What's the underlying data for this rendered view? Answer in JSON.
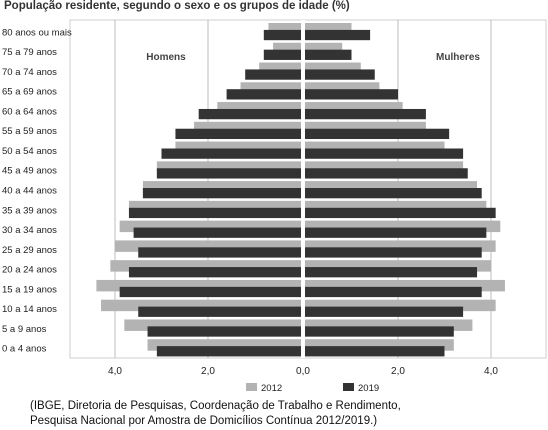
{
  "chart_data": {
    "type": "bar",
    "title": "População residente, segundo o sexo e os grupos de idade (%)",
    "categories": [
      "80 anos ou mais",
      "75 a 79 anos",
      "70 a 74 anos",
      "65 a 69 anos",
      "60 a 64 anos",
      "55 a 59 anos",
      "50 a 54 anos",
      "45 a 49 anos",
      "40 a 44 anos",
      "35 a 39 anos",
      "30 a 34 anos",
      "25 a 29 anos",
      "20 a 24 anos",
      "15 a 19 anos",
      "10 a 14 anos",
      "5 a 9 anos",
      "0 a 4 anos"
    ],
    "group_labels": {
      "left": "Homens",
      "right": "Mulheres"
    },
    "xticks": [
      "4,0",
      "2,0",
      "0,0",
      "2,0",
      "4,0"
    ],
    "xlim": [
      -4.5,
      4.5
    ],
    "grid": true,
    "legend_position": "bottom",
    "series": [
      {
        "name": "2012",
        "color": "#b3b3b3",
        "homens": [
          0.7,
          0.6,
          0.9,
          1.3,
          1.8,
          2.3,
          2.7,
          3.1,
          3.4,
          3.7,
          3.9,
          4.0,
          4.1,
          4.4,
          4.3,
          3.8,
          3.3
        ],
        "mulheres": [
          1.0,
          0.8,
          1.2,
          1.6,
          2.1,
          2.6,
          3.0,
          3.4,
          3.7,
          3.9,
          4.2,
          4.1,
          4.0,
          4.3,
          4.1,
          3.6,
          3.2
        ]
      },
      {
        "name": "2019",
        "color": "#333333",
        "homens": [
          0.8,
          0.8,
          1.2,
          1.6,
          2.2,
          2.7,
          3.0,
          3.1,
          3.4,
          3.7,
          3.6,
          3.5,
          3.7,
          3.9,
          3.5,
          3.3,
          3.1
        ],
        "mulheres": [
          1.4,
          1.0,
          1.5,
          2.0,
          2.6,
          3.1,
          3.4,
          3.5,
          3.8,
          4.1,
          3.9,
          3.8,
          3.7,
          3.8,
          3.4,
          3.2,
          3.0
        ]
      }
    ]
  },
  "source_note": {
    "line1": "(IBGE, Diretoria de Pesquisas, Coordenação de Trabalho e Rendimento,",
    "line2": "Pesquisa Nacional por Amostra de Domicílios Contínua 2012/2019.)"
  }
}
